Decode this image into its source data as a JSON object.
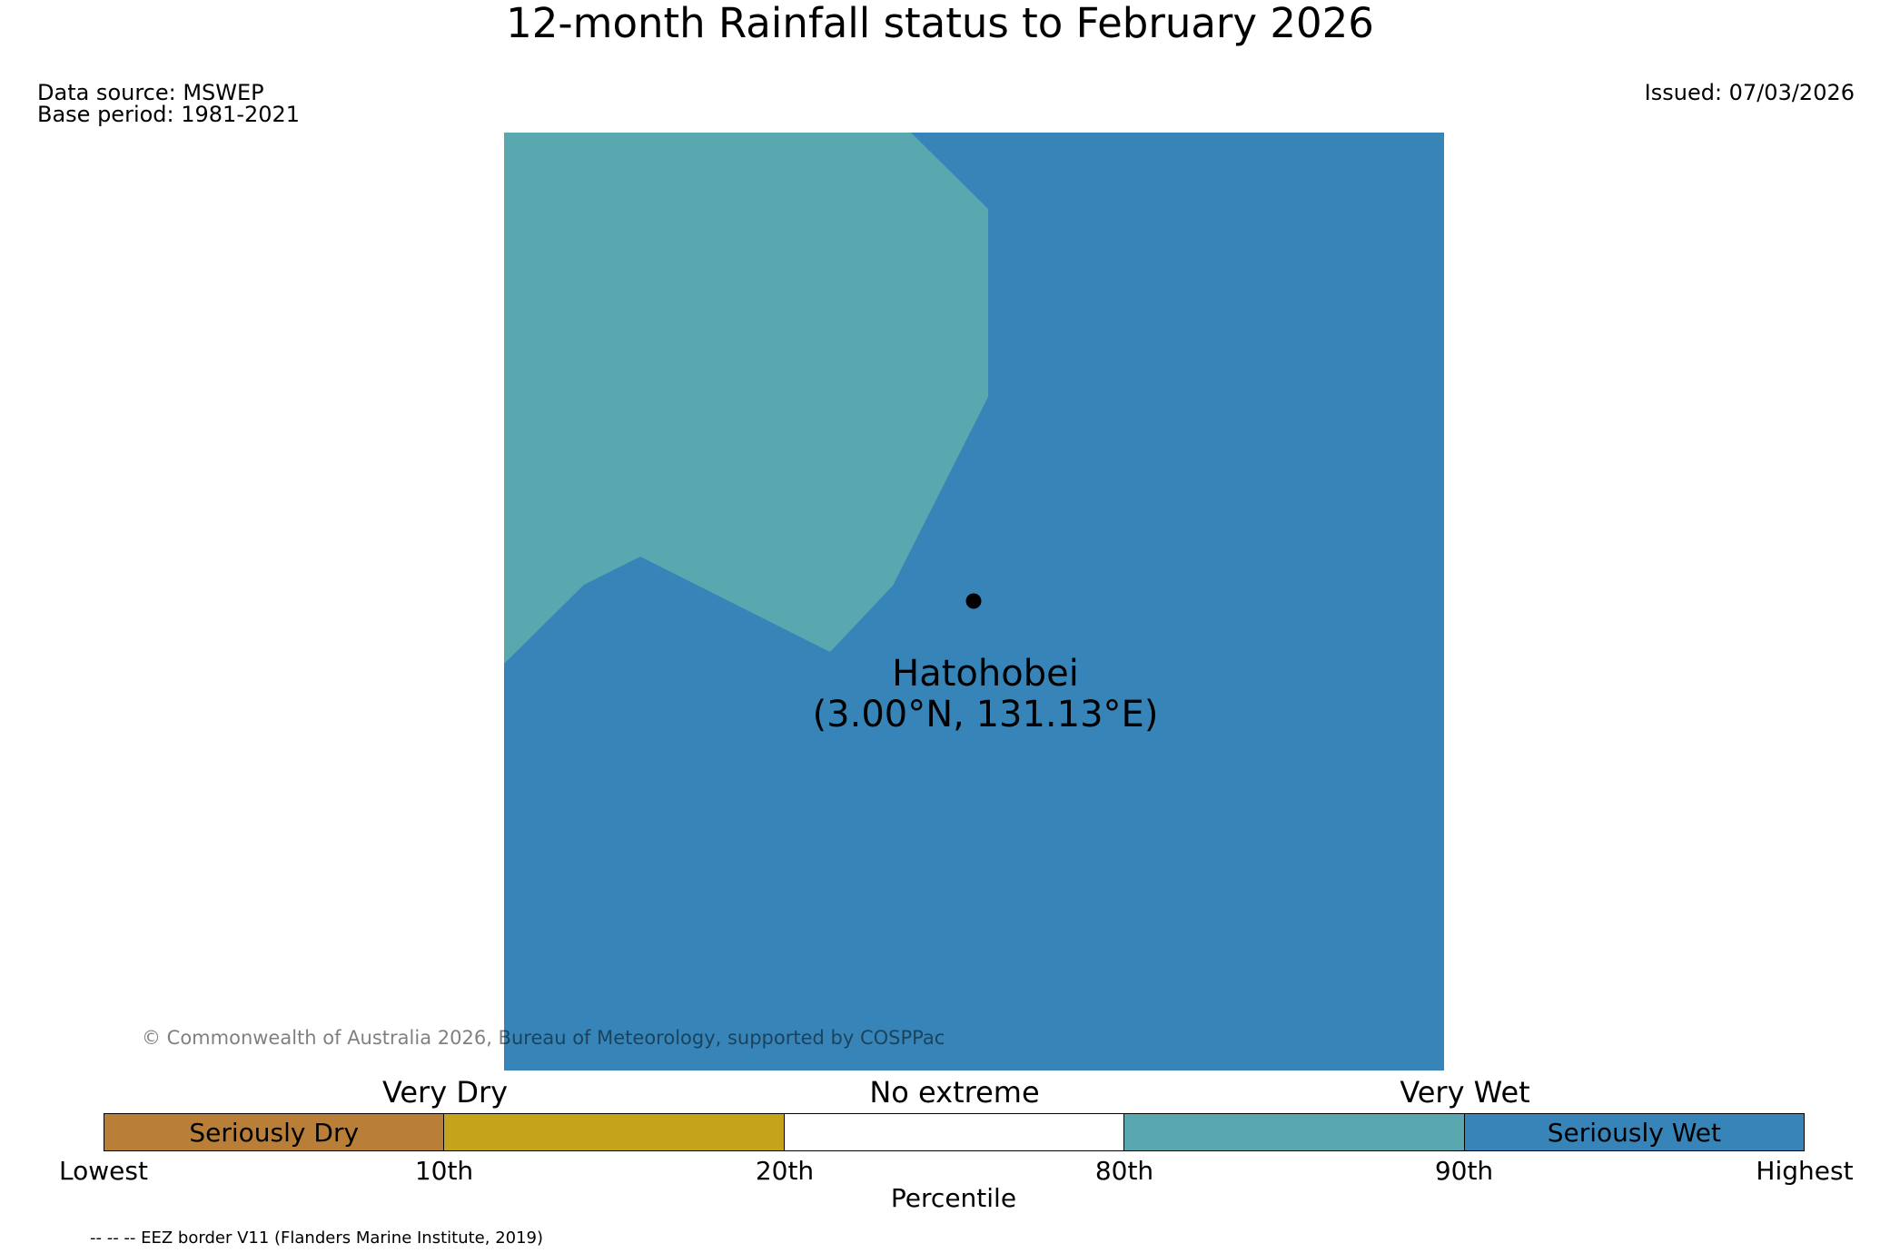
{
  "title": "12-month Rainfall status to February 2026",
  "data_source": "Data source: MSWEP",
  "base_period": "Base period: 1981-2021",
  "issued": "Issued: 07/03/2026",
  "site": {
    "name": "Hatohobei",
    "coords": "(3.00°N, 131.13°E)"
  },
  "copyright": "© Commonwealth of Australia 2026, Bureau of Meteorology, supported by COSPPac",
  "colors": {
    "seriously_dry": "#b97f39",
    "very_dry": "#c3a41a",
    "no_extreme": "#ffffff",
    "very_wet": "#5aa8af",
    "seriously_wet": "#3785b8",
    "site_marker": "#000000"
  },
  "legend": {
    "categories": [
      "Very Dry",
      "No extreme",
      "Very Wet"
    ],
    "segments": [
      {
        "label": "Seriously Dry",
        "color": "#b97f39"
      },
      {
        "label": "",
        "color": "#c3a41a"
      },
      {
        "label": "",
        "color": "#ffffff"
      },
      {
        "label": "",
        "color": "#5aa8af"
      },
      {
        "label": "Seriously Wet",
        "color": "#3785b8"
      }
    ],
    "ticks": [
      "Lowest",
      "10th",
      "20th",
      "80th",
      "90th",
      "Highest"
    ],
    "axis_label": "Percentile"
  },
  "footnote": "-- -- -- EEZ border V11 (Flanders Marine Institute, 2019)"
}
